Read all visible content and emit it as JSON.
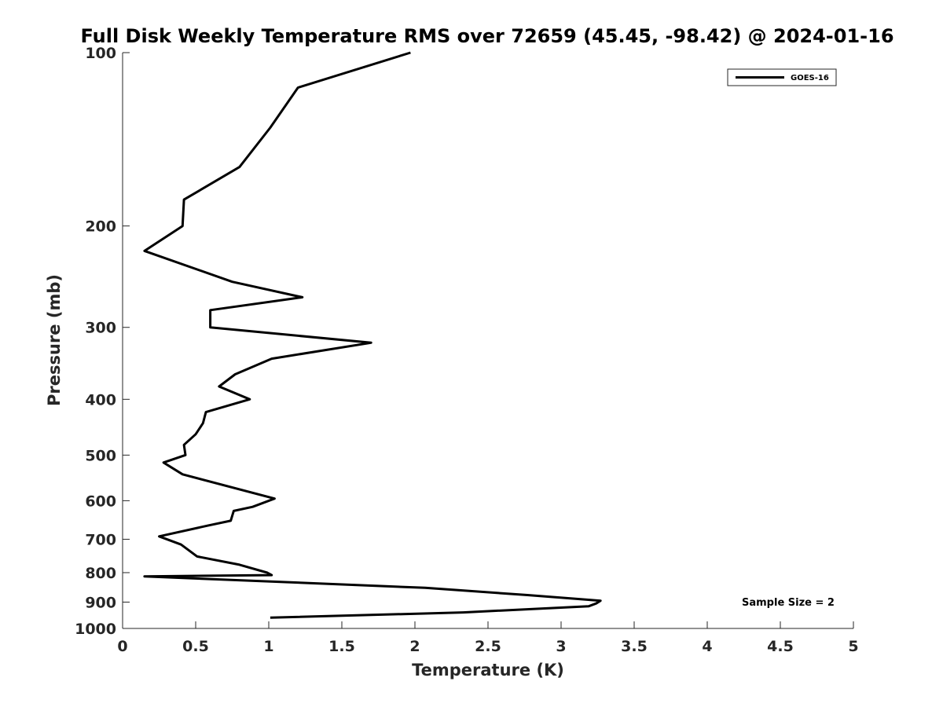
{
  "chart_data": {
    "type": "line",
    "title": "Full Disk Weekly Temperature RMS over 72659 (45.45, -98.42) @ 2024-01-16",
    "xlabel": "Temperature (K)",
    "ylabel": "Pressure (mb)",
    "xlim": [
      0,
      5
    ],
    "ylim": [
      100,
      1000
    ],
    "y_scale": "log",
    "y_reversed": true,
    "x_ticks": [
      "0",
      "0.5",
      "1",
      "1.5",
      "2",
      "2.5",
      "3",
      "3.5",
      "4",
      "4.5",
      "5"
    ],
    "y_ticks": [
      "100",
      "200",
      "300",
      "400",
      "500",
      "600",
      "700",
      "800",
      "900",
      "1000"
    ],
    "grid": false,
    "legend_position": "top-right",
    "series": [
      {
        "name": "GOES-16",
        "color": "#000000",
        "points": [
          [
            1.97,
            100
          ],
          [
            1.2,
            115
          ],
          [
            1.01,
            135
          ],
          [
            0.8,
            158
          ],
          [
            0.42,
            180
          ],
          [
            0.41,
            200
          ],
          [
            0.15,
            221
          ],
          [
            0.75,
            250
          ],
          [
            1.23,
            266
          ],
          [
            0.6,
            280
          ],
          [
            0.6,
            300
          ],
          [
            1.7,
            319
          ],
          [
            1.02,
            340
          ],
          [
            0.77,
            362
          ],
          [
            0.66,
            380
          ],
          [
            0.87,
            400
          ],
          [
            0.57,
            421
          ],
          [
            0.55,
            440
          ],
          [
            0.5,
            460
          ],
          [
            0.42,
            480
          ],
          [
            0.43,
            500
          ],
          [
            0.28,
            515
          ],
          [
            0.41,
            540
          ],
          [
            1.04,
            595
          ],
          [
            0.89,
            615
          ],
          [
            0.76,
            625
          ],
          [
            0.74,
            650
          ],
          [
            0.58,
            663
          ],
          [
            0.25,
            692
          ],
          [
            0.4,
            715
          ],
          [
            0.51,
            750
          ],
          [
            0.8,
            775
          ],
          [
            0.99,
            800
          ],
          [
            1.02,
            808
          ],
          [
            0.15,
            812
          ],
          [
            2.07,
            850
          ],
          [
            2.77,
            875
          ],
          [
            3.27,
            895
          ],
          [
            3.24,
            905
          ],
          [
            3.19,
            915
          ],
          [
            2.33,
            938
          ],
          [
            1.01,
            958
          ]
        ]
      }
    ],
    "annotations": [
      "Sample Size = 2"
    ]
  }
}
